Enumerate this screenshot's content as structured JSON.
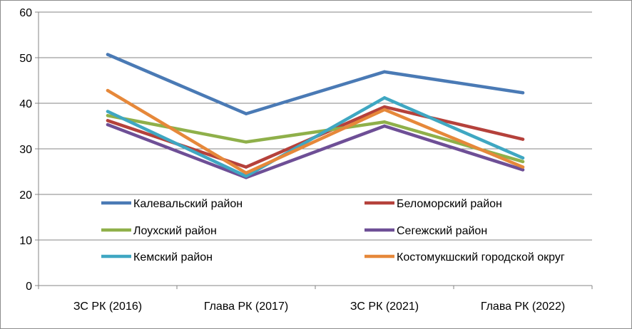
{
  "chart_data": {
    "type": "line",
    "categories": [
      "ЗС РК (2016)",
      "Глава РК (2017)",
      "ЗС РК (2021)",
      "Глава РК (2022)"
    ],
    "ylim": [
      0,
      60
    ],
    "yticks": [
      0,
      10,
      20,
      30,
      40,
      50,
      60
    ],
    "grid": true,
    "legend_position": "inside-bottom",
    "series": [
      {
        "name": "Калевальский район",
        "color": "#4a7ab5",
        "values": [
          50.7,
          37.7,
          46.9,
          42.3
        ]
      },
      {
        "name": "Беломорский район",
        "color": "#b5413b",
        "values": [
          36.2,
          26.0,
          39.2,
          32.1
        ]
      },
      {
        "name": "Лоухский район",
        "color": "#8fb04a",
        "values": [
          37.3,
          31.5,
          35.9,
          27.2
        ]
      },
      {
        "name": "Сегежский район",
        "color": "#6e4f96",
        "values": [
          35.3,
          23.7,
          35.0,
          25.4
        ]
      },
      {
        "name": "Кемский район",
        "color": "#3fa7c2",
        "values": [
          38.2,
          24.0,
          41.2,
          28.0
        ]
      },
      {
        "name": "Костомукшский городской округ",
        "color": "#e6883a",
        "values": [
          42.8,
          24.7,
          38.6,
          26.0
        ]
      }
    ]
  }
}
